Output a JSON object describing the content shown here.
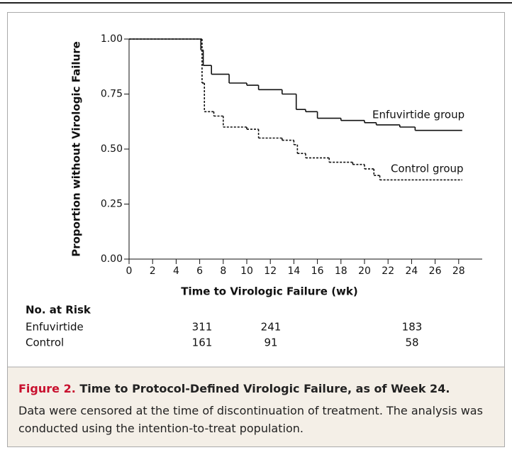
{
  "chart_data": {
    "type": "step",
    "x_label": "Time to Virologic Failure (wk)",
    "y_label": "Proportion without Virologic Failure",
    "xlim": [
      0,
      30
    ],
    "xticks": [
      0,
      2,
      4,
      6,
      8,
      10,
      12,
      14,
      16,
      18,
      20,
      22,
      24,
      26,
      28
    ],
    "ylim": [
      0,
      1
    ],
    "yticks": [
      {
        "value": 0,
        "label": "0.00"
      },
      {
        "value": 0.25,
        "label": "0.25"
      },
      {
        "value": 0.5,
        "label": "0.50"
      },
      {
        "value": 0.75,
        "label": "0.75"
      },
      {
        "value": 1,
        "label": "1.00"
      }
    ],
    "series": [
      {
        "name": "Enfuvirtide group",
        "color": "#111111",
        "dash": false,
        "x": [
          0,
          6.1,
          6.3,
          7,
          8.5,
          10,
          11,
          13,
          14.2,
          15,
          16,
          18,
          20,
          21,
          23,
          24.3,
          28.3
        ],
        "values": [
          1,
          0.95,
          0.88,
          0.84,
          0.8,
          0.79,
          0.77,
          0.75,
          0.68,
          0.67,
          0.64,
          0.63,
          0.62,
          0.61,
          0.6,
          0.585,
          0.585
        ]
      },
      {
        "name": "Control group",
        "color": "#111111",
        "dash": true,
        "x": [
          0,
          6.2,
          6.4,
          7.2,
          8,
          10,
          11,
          13,
          14,
          14.3,
          15,
          17,
          19,
          20,
          20.8,
          21.3,
          28.3
        ],
        "values": [
          1,
          0.8,
          0.67,
          0.65,
          0.6,
          0.59,
          0.55,
          0.54,
          0.52,
          0.48,
          0.46,
          0.44,
          0.43,
          0.41,
          0.38,
          0.36,
          0.36
        ]
      }
    ]
  },
  "risk_table": {
    "title": "No. at Risk",
    "rows": [
      {
        "label": "Enfuvirtide",
        "counts": [
          "311",
          "241",
          "183"
        ]
      },
      {
        "label": "Control",
        "counts": [
          "161",
          "91",
          "58"
        ]
      }
    ]
  },
  "caption": {
    "figure": "Figure 2.",
    "title": "Time to Protocol-Defined Virologic Failure, as of Week 24.",
    "text": "Data were censored at the time of discontinuation of treatment. The analysis was conducted using the intention-to-treat population."
  }
}
